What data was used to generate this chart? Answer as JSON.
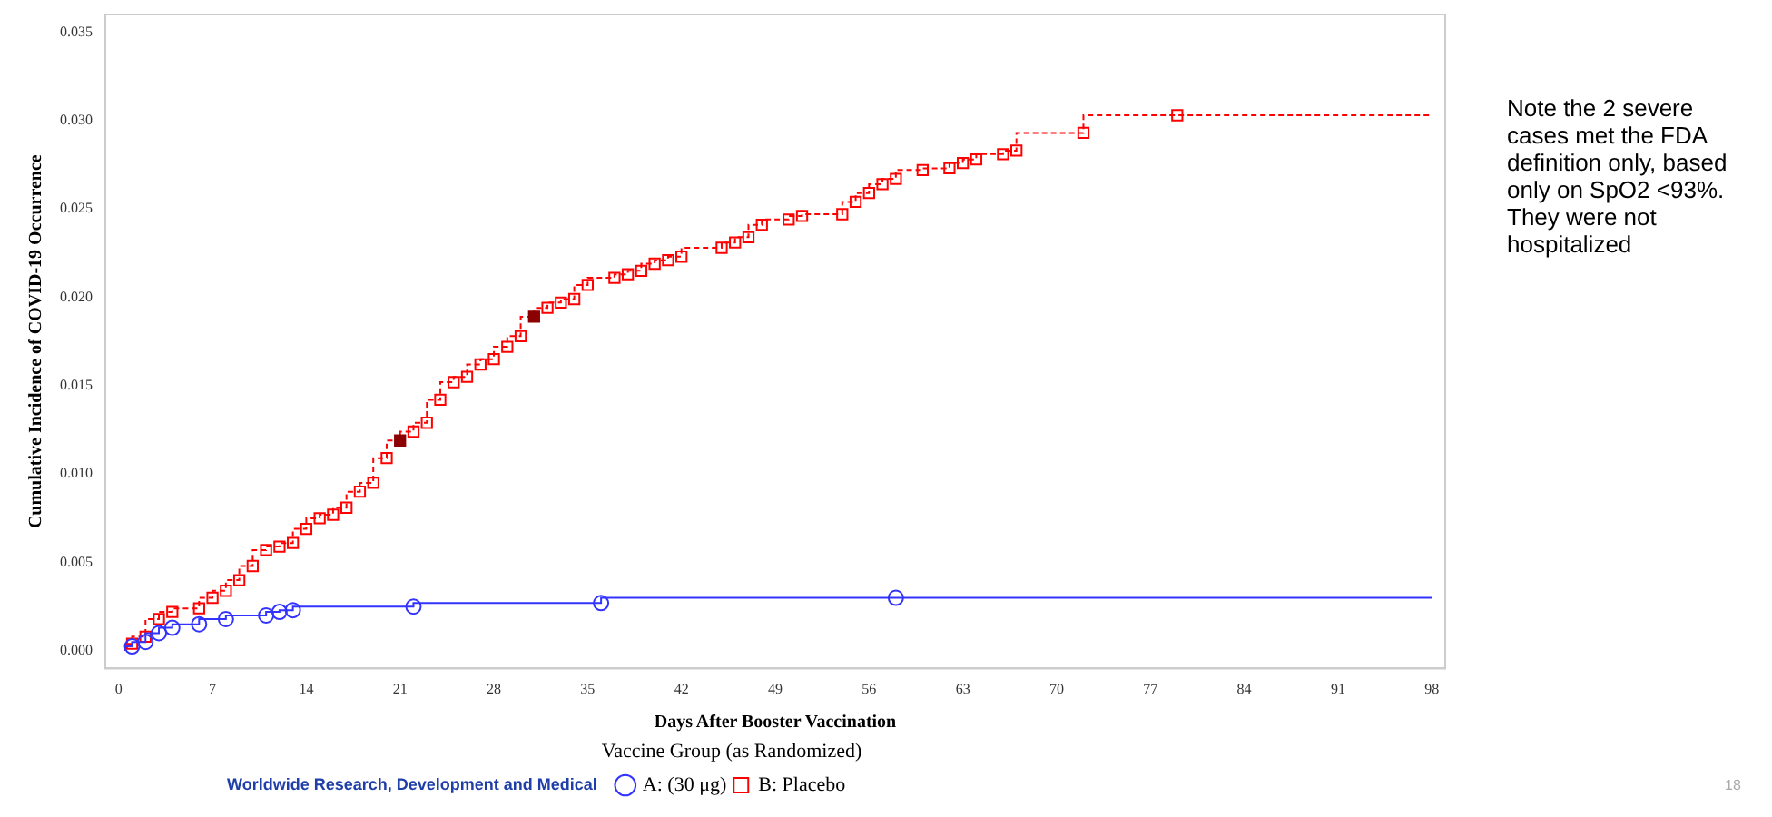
{
  "chart_data": {
    "type": "step",
    "xlabel": "Days After Booster Vaccination",
    "ylabel": "Cumulative Incidence of COVID-19 Occurrence",
    "legend_title": "Vaccine Group (as Randomized)",
    "legend": "bottom",
    "grid": false,
    "xlim": [
      -1,
      99
    ],
    "xticks": [
      0,
      7,
      14,
      21,
      28,
      35,
      42,
      49,
      56,
      63,
      70,
      77,
      84,
      91,
      98
    ],
    "ylim": [
      -0.001,
      0.036
    ],
    "yticks": [
      {
        "value": 0,
        "label": "0.000"
      },
      {
        "value": 0.005,
        "label": "0.005"
      },
      {
        "value": 0.01,
        "label": "0.010"
      },
      {
        "value": 0.015,
        "label": "0.015"
      },
      {
        "value": 0.02,
        "label": "0.020"
      },
      {
        "value": 0.025,
        "label": "0.025"
      },
      {
        "value": 0.03,
        "label": "0.030"
      },
      {
        "value": 0.035,
        "label": "0.035"
      }
    ],
    "series": [
      {
        "name": "A: (30 μg)",
        "color": "#3333ff",
        "marker": "circle",
        "line_style": "solid",
        "x": [
          0.5,
          1,
          2,
          3,
          4,
          6,
          8,
          11,
          12,
          13,
          22,
          36,
          58,
          98
        ],
        "values": [
          0,
          0.00025,
          0.0005,
          0.001,
          0.0013,
          0.0015,
          0.0018,
          0.002,
          0.0022,
          0.0023,
          0.0025,
          0.0027,
          0.003,
          0.003
        ]
      },
      {
        "name": "B: Placebo",
        "color": "#ff0000",
        "marker": "square",
        "line_style": "dashed",
        "x": [
          0.5,
          1,
          2,
          3,
          4,
          6,
          7,
          8,
          9,
          10,
          11,
          12,
          13,
          14,
          15,
          16,
          17,
          18,
          19,
          20,
          21,
          22,
          23,
          24,
          25,
          26,
          27,
          28,
          29,
          30,
          31,
          32,
          33,
          34,
          35,
          37,
          38,
          39,
          40,
          41,
          42,
          45,
          46,
          47,
          48,
          50,
          51,
          54,
          55,
          56,
          57,
          58,
          60,
          62,
          63,
          64,
          66,
          67,
          72,
          79,
          98
        ],
        "values": [
          0,
          0.0004,
          0.0008,
          0.0018,
          0.0022,
          0.0024,
          0.003,
          0.0034,
          0.004,
          0.0048,
          0.0057,
          0.0059,
          0.0061,
          0.0069,
          0.0075,
          0.0077,
          0.0081,
          0.009,
          0.0095,
          0.0109,
          0.0119,
          0.0124,
          0.0129,
          0.0142,
          0.0152,
          0.0155,
          0.0162,
          0.0165,
          0.0172,
          0.0178,
          0.0189,
          0.0194,
          0.0197,
          0.0199,
          0.0207,
          0.0211,
          0.0213,
          0.0215,
          0.0219,
          0.0221,
          0.0223,
          0.0228,
          0.0231,
          0.0234,
          0.0241,
          0.0244,
          0.0246,
          0.0247,
          0.0254,
          0.0259,
          0.0264,
          0.0267,
          0.0272,
          0.0273,
          0.0276,
          0.0278,
          0.0281,
          0.0283,
          0.0293,
          0.0303,
          0.0303
        ],
        "colors": [
          "#ff0000",
          "#ff0000",
          "#ff0000",
          "#ff0000",
          "#ff0000",
          "#ff0000",
          "#ff0000",
          "#ff0000",
          "#ff0000",
          "#ff0000",
          "#ff0000",
          "#ff0000",
          "#ff0000",
          "#ff0000",
          "#ff0000",
          "#ff0000",
          "#ff0000",
          "#ff0000",
          "#ff0000",
          "#ff0000",
          "#8b0000",
          "#ff0000",
          "#ff0000",
          "#ff0000",
          "#ff0000",
          "#ff0000",
          "#ff0000",
          "#ff0000",
          "#ff0000",
          "#ff0000",
          "#8b0000",
          "#ff0000",
          "#ff0000",
          "#ff0000",
          "#ff0000",
          "#ff0000",
          "#ff0000",
          "#ff0000",
          "#ff0000",
          "#ff0000",
          "#ff0000",
          "#ff0000",
          "#ff0000",
          "#ff0000",
          "#ff0000",
          "#ff0000",
          "#ff0000",
          "#ff0000",
          "#ff0000",
          "#ff0000",
          "#ff0000",
          "#ff0000",
          "#ff0000",
          "#ff0000",
          "#ff0000",
          "#ff0000",
          "#ff0000",
          "#ff0000",
          "#ff0000",
          "#ff0000",
          "#ff0000"
        ]
      }
    ],
    "annotations": [
      "Note the 2 severe cases met the FDA definition only, based only on SpO2 <93%. They were not hospitalized",
      "Worldwide Research, Development and Medical",
      "18"
    ]
  }
}
